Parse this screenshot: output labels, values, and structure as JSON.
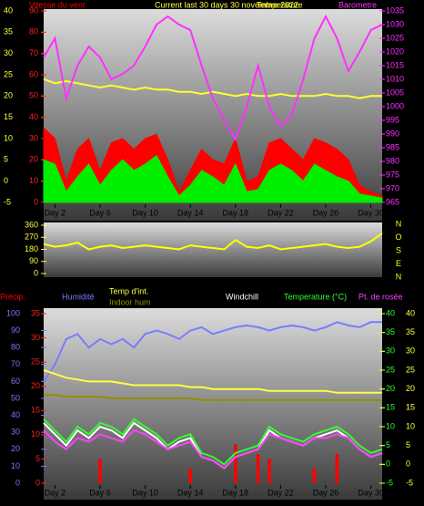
{
  "chart_data": [
    {
      "type": "multi",
      "title": "Current last 30 days 30 novembre 2022",
      "x": [
        1,
        2,
        3,
        4,
        5,
        6,
        7,
        8,
        9,
        10,
        11,
        12,
        13,
        14,
        15,
        16,
        17,
        18,
        19,
        20,
        21,
        22,
        23,
        24,
        25,
        26,
        27,
        28,
        29,
        30,
        31
      ],
      "xlim": [
        1,
        31
      ],
      "xticks": [
        {
          "value": 2,
          "label": "Day 2"
        },
        {
          "value": 6,
          "label": "Day 6"
        },
        {
          "value": 10,
          "label": "Day 10"
        },
        {
          "value": 14,
          "label": "Day 14"
        },
        {
          "value": 18,
          "label": "Day 18"
        },
        {
          "value": 22,
          "label": "Day 22"
        },
        {
          "value": 26,
          "label": "Day 26"
        },
        {
          "value": 30,
          "label": "Day 30"
        }
      ],
      "ylim": [
        0,
        90
      ],
      "yticks": [
        0,
        10,
        20,
        30,
        40,
        50,
        60,
        70,
        80,
        90
      ],
      "y2lim": [
        965,
        1035
      ],
      "y2ticks": [
        965,
        970,
        975,
        980,
        985,
        990,
        995,
        1000,
        1005,
        1010,
        1015,
        1020,
        1025,
        1030,
        1035
      ],
      "y3lim": [
        -5,
        40
      ],
      "y3ticks": [
        -5,
        0,
        5,
        10,
        15,
        20,
        25,
        30,
        35,
        40
      ],
      "axis_colors": {
        "y": "#ff2020",
        "y2": "#ff30ff",
        "y3": "#ffff40"
      },
      "series": [
        {
          "name": "Vitesse du vent",
          "color": "#ff0000",
          "kind": "area",
          "axis": "y",
          "values": [
            35,
            30,
            10,
            25,
            30,
            15,
            28,
            30,
            25,
            30,
            32,
            20,
            5,
            15,
            25,
            20,
            18,
            30,
            10,
            12,
            28,
            30,
            25,
            20,
            30,
            28,
            25,
            20,
            8,
            5,
            3
          ]
        },
        {
          "color": "#00ee00",
          "kind": "area",
          "axis": "y",
          "values": [
            20,
            18,
            5,
            12,
            18,
            8,
            15,
            20,
            15,
            18,
            22,
            12,
            3,
            8,
            15,
            12,
            8,
            18,
            5,
            6,
            15,
            18,
            15,
            10,
            18,
            15,
            12,
            10,
            4,
            3,
            2
          ]
        },
        {
          "name": "Temperature",
          "color": "#ffff30",
          "kind": "line",
          "axis": "y3",
          "values": [
            24,
            23,
            23.5,
            23,
            22.5,
            22,
            22.5,
            22,
            21.5,
            22,
            21.5,
            21.5,
            21,
            21,
            20.5,
            21,
            20.5,
            20,
            20.5,
            20,
            20,
            20.5,
            20,
            20,
            20,
            20.5,
            20,
            20,
            19.5,
            20,
            20
          ]
        },
        {
          "name": "Barometre",
          "color": "#ff30ff",
          "kind": "line",
          "axis": "y2",
          "values": [
            1018,
            1025,
            1003,
            1015,
            1022,
            1018,
            1010,
            1012,
            1015,
            1022,
            1030,
            1033,
            1030,
            1028,
            1015,
            1003,
            995,
            988,
            1000,
            1015,
            1000,
            993,
            997,
            1010,
            1025,
            1033,
            1025,
            1013,
            1020,
            1028,
            1030
          ]
        }
      ]
    },
    {
      "type": "multi",
      "x": [
        1,
        2,
        3,
        4,
        5,
        6,
        7,
        8,
        9,
        10,
        11,
        12,
        13,
        14,
        15,
        16,
        17,
        18,
        19,
        20,
        21,
        22,
        23,
        24,
        25,
        26,
        27,
        28,
        29,
        30,
        31
      ],
      "xlim": [
        1,
        31
      ],
      "ylim": [
        0,
        360
      ],
      "yticks": [
        0,
        90,
        180,
        270,
        360
      ],
      "axis_colors": {
        "y": "#ffff40"
      },
      "direction_labels": [
        "N",
        "O",
        "S",
        "E",
        "N"
      ],
      "series": [
        {
          "color": "#ffff00",
          "kind": "line",
          "axis": "y",
          "values": [
            220,
            200,
            210,
            230,
            180,
            200,
            210,
            190,
            200,
            210,
            200,
            190,
            180,
            210,
            200,
            190,
            180,
            250,
            200,
            190,
            210,
            180,
            190,
            200,
            210,
            220,
            200,
            190,
            200,
            240,
            300
          ]
        }
      ]
    },
    {
      "type": "multi",
      "x": [
        1,
        2,
        3,
        4,
        5,
        6,
        7,
        8,
        9,
        10,
        11,
        12,
        13,
        14,
        15,
        16,
        17,
        18,
        19,
        20,
        21,
        22,
        23,
        24,
        25,
        26,
        27,
        28,
        29,
        30,
        31
      ],
      "xlim": [
        1,
        31
      ],
      "xticks": [
        {
          "value": 2,
          "label": "Day 2"
        },
        {
          "value": 6,
          "label": "Day 6"
        },
        {
          "value": 10,
          "label": "Day 10"
        },
        {
          "value": 14,
          "label": "Day 14"
        },
        {
          "value": 18,
          "label": "Day 18"
        },
        {
          "value": 22,
          "label": "Day 22"
        },
        {
          "value": 26,
          "label": "Day 26"
        },
        {
          "value": 30,
          "label": "Day 30"
        }
      ],
      "ylim": [
        0,
        100
      ],
      "yticks": [
        0,
        10,
        20,
        30,
        40,
        50,
        60,
        70,
        80,
        90,
        100
      ],
      "y2lim": [
        0,
        35
      ],
      "y2ticks": [
        0,
        5,
        10,
        15,
        20,
        25,
        30,
        35
      ],
      "y3lim": [
        -5,
        40
      ],
      "y3ticks": [
        -5,
        0,
        5,
        10,
        15,
        20,
        25,
        30,
        35,
        40
      ],
      "y4lim": [
        -5,
        40
      ],
      "y4ticks": [
        -5,
        0,
        5,
        10,
        15,
        20,
        25,
        30,
        35,
        40
      ],
      "axis_colors": {
        "y": "#7b7bff",
        "y2": "#ff2020",
        "y3": "#30ff30",
        "y4": "#ffff40"
      },
      "series": [
        {
          "name": "Précip.",
          "color": "#ff0000",
          "kind": "bar",
          "axis": "y2",
          "values": [
            0,
            0,
            0,
            0,
            0,
            5,
            0,
            0,
            0,
            0,
            0,
            0,
            0,
            3,
            0,
            0,
            0,
            8,
            0,
            6,
            5,
            0,
            0,
            0,
            3,
            0,
            6,
            0,
            0,
            0,
            0
          ]
        },
        {
          "name": "Humidité",
          "color": "#7b7bff",
          "kind": "line",
          "axis": "y",
          "values": [
            60,
            70,
            85,
            88,
            80,
            85,
            82,
            85,
            80,
            88,
            90,
            88,
            85,
            90,
            92,
            88,
            90,
            92,
            93,
            92,
            90,
            92,
            93,
            92,
            90,
            92,
            95,
            93,
            92,
            95,
            95
          ]
        },
        {
          "name": "Temp d'int.",
          "color": "#ffff40",
          "kind": "line",
          "axis": "y3",
          "values": [
            25,
            24,
            23,
            22.5,
            22,
            22,
            22,
            21.5,
            21,
            21,
            21,
            21,
            21,
            20.5,
            20.5,
            20,
            20,
            20,
            20,
            20,
            19.5,
            19.5,
            19.5,
            19.5,
            19.5,
            19.5,
            19,
            19,
            19,
            19,
            19
          ]
        },
        {
          "name": "Indoor hum",
          "color": "#909000",
          "kind": "line",
          "axis": "y",
          "values": [
            52,
            52,
            51,
            51,
            51,
            51,
            50,
            50,
            50,
            50,
            50,
            50,
            50,
            50,
            49,
            49,
            49,
            49,
            49,
            49,
            49,
            49,
            49,
            49,
            49,
            49,
            49,
            49,
            49,
            49,
            49
          ]
        },
        {
          "name": "Windchill",
          "color": "#ffffff",
          "kind": "line",
          "axis": "y3",
          "values": [
            11,
            8,
            5,
            9,
            7,
            10,
            9,
            7,
            11,
            9,
            7,
            4,
            6,
            7,
            2,
            1,
            -1,
            2,
            3,
            4,
            9,
            7,
            6,
            5,
            7,
            8,
            9,
            7,
            4,
            2,
            3
          ]
        },
        {
          "name": "Temperature (°C)",
          "color": "#30ff30",
          "kind": "line",
          "axis": "y3",
          "values": [
            12,
            9,
            6,
            10,
            8,
            11,
            10,
            8,
            12,
            10,
            8,
            5,
            7,
            8,
            3,
            2,
            0,
            3,
            4,
            5,
            10,
            8,
            7,
            6,
            8,
            9,
            10,
            8,
            5,
            3,
            4
          ]
        },
        {
          "name": "Pt. de rosée",
          "color": "#ff40ff",
          "kind": "line",
          "axis": "y3",
          "values": [
            9,
            6,
            4,
            7,
            6,
            8,
            7,
            6,
            9,
            8,
            6,
            4,
            5,
            6,
            2,
            1,
            -1,
            2,
            3,
            4,
            8,
            7,
            6,
            5,
            7,
            7,
            8,
            7,
            4,
            2,
            3
          ]
        }
      ]
    }
  ]
}
